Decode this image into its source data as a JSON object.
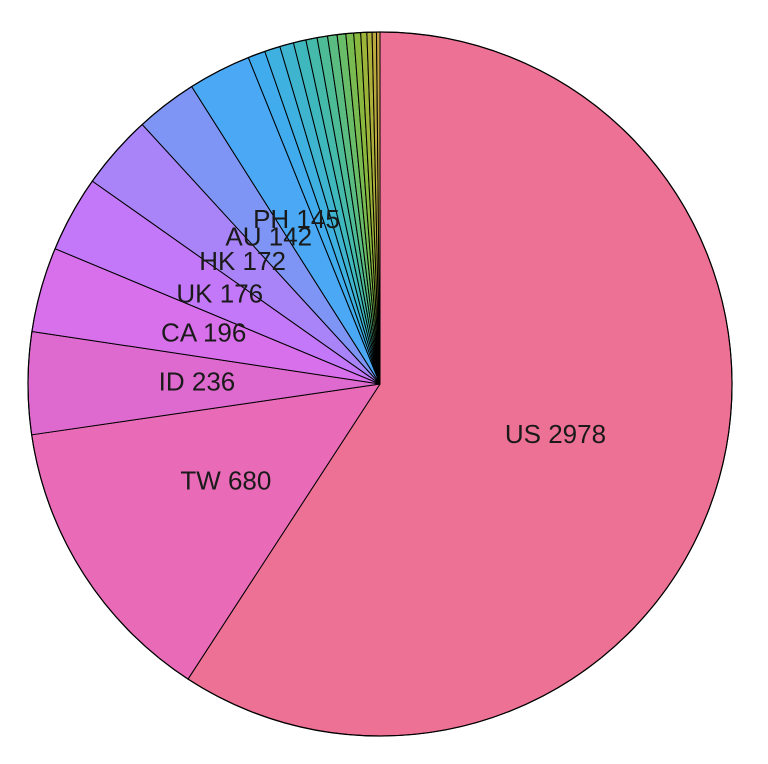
{
  "chart_data": {
    "type": "pie",
    "start": "12 o'clock",
    "direction": "clockwise",
    "slices": [
      {
        "label": "US 2978",
        "value": 2978,
        "color": "#ED7095"
      },
      {
        "label": "TW 680",
        "value": 680,
        "color": "#E96BB8"
      },
      {
        "label": "ID 236",
        "value": 236,
        "color": "#DE6AD0"
      },
      {
        "label": "CA 196",
        "value": 196,
        "color": "#D870EC"
      },
      {
        "label": "UK 176",
        "value": 176,
        "color": "#C278F8"
      },
      {
        "label": "HK 172",
        "value": 172,
        "color": "#A884F8"
      },
      {
        "label": "AU 142",
        "value": 142,
        "color": "#7F95F6"
      },
      {
        "label": "PH 145",
        "value": 145,
        "color": "#4BA8F5"
      },
      {
        "label": "",
        "value": 40,
        "color": "#40ACEE"
      },
      {
        "label": "",
        "value": 36,
        "color": "#3EB1E0"
      },
      {
        "label": "",
        "value": 32,
        "color": "#3EB4CF"
      },
      {
        "label": "",
        "value": 29,
        "color": "#3FB8BD"
      },
      {
        "label": "",
        "value": 26,
        "color": "#45B9AA"
      },
      {
        "label": "",
        "value": 24,
        "color": "#4DBB96"
      },
      {
        "label": "",
        "value": 22,
        "color": "#5ABC80"
      },
      {
        "label": "",
        "value": 20,
        "color": "#69BC68"
      },
      {
        "label": "",
        "value": 18,
        "color": "#79BB50"
      },
      {
        "label": "",
        "value": 16,
        "color": "#8AB83E"
      },
      {
        "label": "",
        "value": 14,
        "color": "#9CB439"
      },
      {
        "label": "",
        "value": 12,
        "color": "#ACAF3A"
      },
      {
        "label": "",
        "value": 10,
        "color": "#B9A93F"
      },
      {
        "label": "",
        "value": 8,
        "color": "#C4A346"
      }
    ]
  }
}
